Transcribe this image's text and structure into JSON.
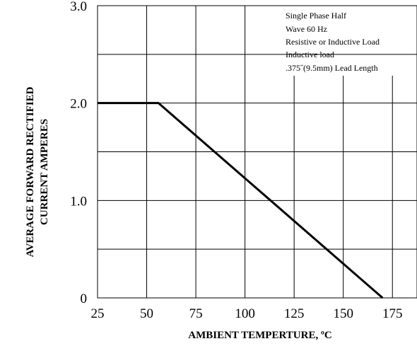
{
  "chart_data": {
    "type": "line",
    "title": "",
    "xlabel": "AMBIENT TEMPERTURE, ºC",
    "ylabel": [
      "AVERAGE FORWARD   RECTIFIED",
      "CURRENT   AMPERES"
    ],
    "xlim": [
      25,
      187.5
    ],
    "ylim": [
      0,
      3.0
    ],
    "x_ticks": [
      25,
      50,
      75,
      100,
      125,
      150,
      175
    ],
    "x_tick_labels": [
      "25",
      "50",
      "75",
      "100",
      "125",
      "150",
      "175"
    ],
    "y_ticks": [
      0,
      1.0,
      2.0,
      3.0
    ],
    "y_tick_labels": [
      "0",
      "1.0",
      "2.0",
      "3.0"
    ],
    "x_grid": [
      50,
      75,
      100,
      125,
      150,
      175
    ],
    "y_grid": [
      0.5,
      1.0,
      1.5,
      2.0,
      2.5
    ],
    "grid": true,
    "series": [
      {
        "x": [
          25,
          56,
          170
        ],
        "y": [
          2.0,
          2.0,
          0
        ]
      }
    ],
    "annotation": {
      "position": "top-right",
      "lines": [
        "Single Phase Half",
        "Wave 60 Hz",
        "Resistive or Inductive Load",
        "Inductive load",
        ".375˝(9.5mm) Lead Length"
      ]
    }
  }
}
